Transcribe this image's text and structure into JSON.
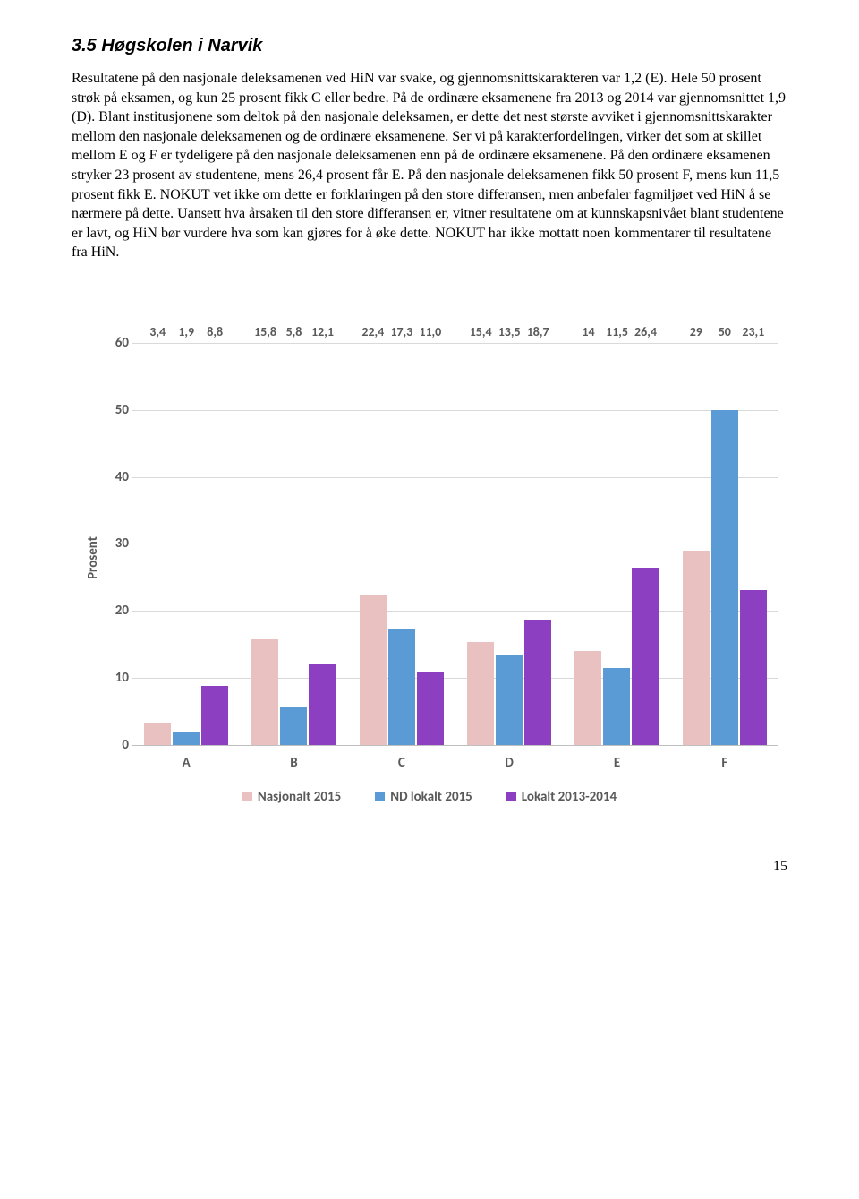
{
  "heading": "3.5  Høgskolen i Narvik",
  "paragraph": "Resultatene på den nasjonale deleksamenen ved HiN var svake, og gjennomsnittskarakteren var 1,2 (E). Hele 50 prosent strøk på eksamen, og kun 25 prosent fikk C eller bedre. På de ordinære eksamenene fra 2013 og 2014 var gjennomsnittet 1,9 (D). Blant institusjonene som deltok på den nasjonale deleksamen, er dette det nest største avviket i gjennomsnittskarakter mellom den nasjonale deleksamenen og de ordinære eksamenene. Ser vi på karakterfordelingen, virker det som at skillet mellom E og F er tydeligere på den nasjonale deleksamenen enn på de ordinære eksamenene. På den ordinære eksamenen stryker 23 prosent av studentene, mens 26,4 prosent får E. På den nasjonale deleksamenen fikk 50 prosent F, mens kun 11,5 prosent fikk E. NOKUT vet ikke om dette er forklaringen på den store differansen, men anbefaler fagmiljøet ved HiN å se nærmere på dette. Uansett hva årsaken til den store differansen er, vitner resultatene om at kunnskapsnivået blant studentene er lavt, og HiN bør vurdere hva som kan gjøres for å øke dette. NOKUT har ikke mottatt noen kommentarer til resultatene fra HiN.",
  "chart": {
    "y_axis_label": "Prosent",
    "y_max": 60,
    "y_ticks": [
      0,
      10,
      20,
      30,
      40,
      50,
      60
    ],
    "categories": [
      "A",
      "B",
      "C",
      "D",
      "E",
      "F"
    ],
    "series": [
      {
        "name": "Nasjonalt 2015",
        "color": "#e8c1c0",
        "label_key": "s1"
      },
      {
        "name": "ND lokalt 2015",
        "color": "#5b9bd5",
        "label_key": "s2"
      },
      {
        "name": "Lokalt 2013-2014",
        "color": "#8c3fc0",
        "label_key": "s3"
      }
    ],
    "data": [
      {
        "s1": "3,4",
        "v1": 3.4,
        "s2": "1,9",
        "v2": 1.9,
        "s3": "8,8",
        "v3": 8.8
      },
      {
        "s1": "15,8",
        "v1": 15.8,
        "s2": "5,8",
        "v2": 5.8,
        "s3": "12,1",
        "v3": 12.1
      },
      {
        "s1": "22,4",
        "v1": 22.4,
        "s2": "17,3",
        "v2": 17.3,
        "s3": "11,0",
        "v3": 11.0
      },
      {
        "s1": "15,4",
        "v1": 15.4,
        "s2": "13,5",
        "v2": 13.5,
        "s3": "18,7",
        "v3": 18.7
      },
      {
        "s1": "14",
        "v1": 14.0,
        "s2": "11,5",
        "v2": 11.5,
        "s3": "26,4",
        "v3": 26.4
      },
      {
        "s1": "29",
        "v1": 29.0,
        "s2": "50",
        "v2": 50.0,
        "s3": "23,1",
        "v3": 23.1
      }
    ]
  },
  "page_number": "15"
}
